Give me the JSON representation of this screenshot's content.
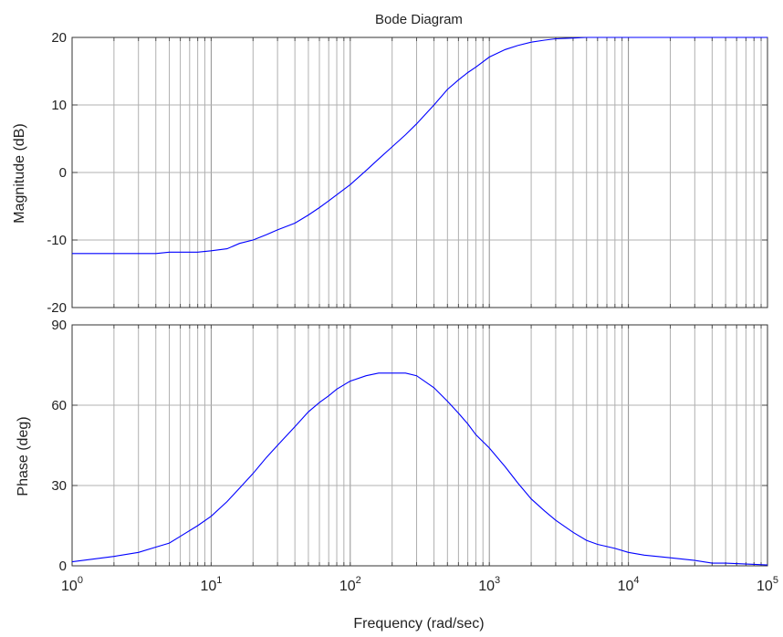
{
  "chart_data": [
    {
      "type": "line",
      "title": "Bode Diagram",
      "ylabel": "Magnitude (dB)",
      "xscale": "log",
      "xlim": [
        1,
        100000
      ],
      "ylim": [
        -20,
        20
      ],
      "yticks": [
        "20",
        "10",
        "0",
        "-10",
        "-20"
      ],
      "grid": true,
      "line_color": "#0000ff",
      "series": [
        {
          "x": [
            1,
            2,
            3,
            4,
            5,
            6,
            8,
            10,
            13,
            16,
            20,
            25,
            30,
            40,
            50,
            60,
            70,
            80,
            100,
            130,
            160,
            200,
            250,
            300,
            400,
            500,
            600,
            700,
            800,
            1000,
            1300,
            1600,
            2000,
            2500,
            3000,
            4000,
            5000,
            6000,
            8000,
            10000,
            20000,
            50000,
            100000
          ],
          "y": [
            -12,
            -12,
            -12,
            -12,
            -11.8,
            -11.8,
            -11.8,
            -11.6,
            -11.3,
            -10.5,
            -10,
            -9.2,
            -8.5,
            -7.5,
            -6.3,
            -5.2,
            -4.2,
            -3.3,
            -1.8,
            0.3,
            2,
            3.8,
            5.6,
            7.2,
            10,
            12.3,
            13.7,
            14.8,
            15.6,
            17.1,
            18.2,
            18.8,
            19.3,
            19.6,
            19.8,
            19.9,
            20,
            20,
            20,
            20,
            20,
            20,
            20
          ]
        }
      ]
    },
    {
      "type": "line",
      "ylabel": "Phase (deg)",
      "xlabel": "Frequency  (rad/sec)",
      "xscale": "log",
      "xlim": [
        1,
        100000
      ],
      "ylim": [
        0,
        90
      ],
      "yticks": [
        "90",
        "60",
        "30",
        "0"
      ],
      "xticks": [
        {
          "base": "10",
          "exp": "0"
        },
        {
          "base": "10",
          "exp": "1"
        },
        {
          "base": "10",
          "exp": "2"
        },
        {
          "base": "10",
          "exp": "3"
        },
        {
          "base": "10",
          "exp": "4"
        },
        {
          "base": "10",
          "exp": "5"
        }
      ],
      "grid": true,
      "line_color": "#0000ff",
      "series": [
        {
          "x": [
            1,
            2,
            3,
            4,
            5,
            6,
            8,
            10,
            13,
            16,
            20,
            25,
            30,
            40,
            50,
            60,
            70,
            80,
            100,
            130,
            160,
            200,
            250,
            300,
            400,
            500,
            600,
            700,
            800,
            1000,
            1300,
            1600,
            2000,
            2500,
            3000,
            4000,
            5000,
            6000,
            8000,
            10000,
            13000,
            16000,
            20000,
            30000,
            40000,
            50000,
            100000
          ],
          "y": [
            1.5,
            3.5,
            5,
            7,
            8.5,
            11,
            15,
            18.5,
            24,
            29,
            34.5,
            40.5,
            45,
            52,
            57.5,
            61,
            63.5,
            66,
            69,
            71,
            72,
            72,
            72,
            71,
            66.5,
            61.5,
            57,
            53,
            49,
            44,
            37,
            31,
            25,
            20.5,
            17,
            12.5,
            9.5,
            8,
            6.5,
            5,
            4,
            3.5,
            3,
            2,
            1,
            1,
            0.3
          ]
        }
      ]
    }
  ]
}
